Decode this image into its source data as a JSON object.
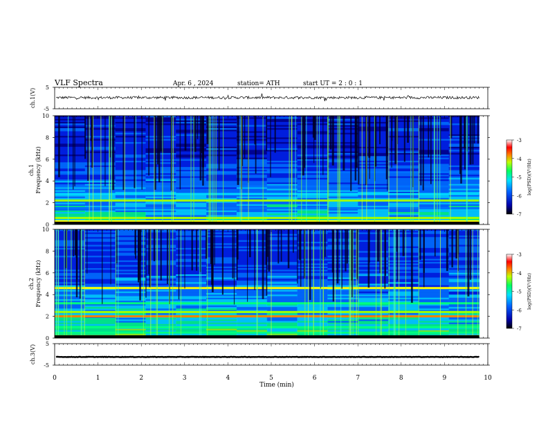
{
  "header": {
    "title": "VLF  Spectra",
    "date": "Apr. 6  , 2024",
    "station": "station= ATH",
    "start_ut": "start  UT  =   2  : 0   : 1"
  },
  "chart_data": [
    {
      "type": "line",
      "panel": "ch1-waveform",
      "ylabel": "ch.1(V)",
      "ylim": [
        -5,
        5
      ],
      "y_ticks": [
        "5",
        "-5"
      ],
      "xlim": [
        0,
        10
      ],
      "series": [
        {
          "values_description_note": "",
          "baseline": 0.2,
          "amplitude": 0.6
        }
      ]
    },
    {
      "type": "heatmap",
      "panel": "ch1-spectrogram",
      "ylabel": "ch.1\nFrequency (kHz)",
      "ylabel_lines": [
        "ch.1",
        "Frequency  (kHz)"
      ],
      "ylim": [
        0,
        10
      ],
      "y_ticks": [
        "0",
        "2",
        "4",
        "6",
        "8",
        "10"
      ],
      "xlim": [
        0,
        10
      ],
      "data_end_min": 9.8,
      "colorbar": {
        "label": "log(PSD)(V²/Hz)",
        "ticks": [
          "-3",
          "-4",
          "-5",
          "-6",
          "-7"
        ],
        "range": [
          -7,
          -3
        ]
      },
      "bands_khz": [
        {
          "f": 1.5,
          "level": -5.6
        },
        {
          "f": 2.2,
          "level": -4.4
        },
        {
          "f": 2.8,
          "level": -5.2
        },
        {
          "f": 3.5,
          "level": -5.5
        },
        {
          "f": 4.8,
          "level": -5.6
        },
        {
          "f": 0.6,
          "level": -4.6
        },
        {
          "f": 0.3,
          "level": -4.0
        }
      ]
    },
    {
      "type": "heatmap",
      "panel": "ch2-spectrogram",
      "ylabel_lines": [
        "ch.2",
        "Frequency  (kHz)"
      ],
      "ylim": [
        0,
        10
      ],
      "y_ticks": [
        "0",
        "2",
        "4",
        "6",
        "8",
        "10"
      ],
      "xlim": [
        0,
        10
      ],
      "data_end_min": 9.8,
      "colorbar": {
        "label": "log(PSD)(V²/Hz)",
        "ticks": [
          "-3",
          "-4",
          "-5",
          "-6",
          "-7"
        ],
        "range": [
          -7,
          -3
        ]
      },
      "bands_khz": [
        {
          "f": 2.0,
          "level": -3.9
        },
        {
          "f": 2.4,
          "level": -4.3
        },
        {
          "f": 3.2,
          "level": -4.9
        },
        {
          "f": 4.6,
          "level": -4.1
        },
        {
          "f": 1.0,
          "level": -5.0
        },
        {
          "f": 0.5,
          "level": -4.8
        }
      ]
    },
    {
      "type": "line",
      "panel": "ch3-waveform",
      "ylabel": "ch.3(V)",
      "ylim": [
        -5,
        5
      ],
      "y_ticks": [
        "5",
        "-5"
      ],
      "xlim": [
        0,
        10
      ],
      "series": [
        {
          "baseline": -1.2,
          "amplitude": 0.1
        }
      ]
    }
  ],
  "x_axis": {
    "label": "Time  (min)",
    "ticks": [
      "0",
      "1",
      "2",
      "3",
      "4",
      "5",
      "6",
      "7",
      "8",
      "9",
      "10"
    ]
  },
  "colors": {
    "colormap": [
      "#000055",
      "#0000ff",
      "#0080ff",
      "#00ffff",
      "#00ff80",
      "#80ff00",
      "#ffff00",
      "#ff8000",
      "#ff0000",
      "#ffffff"
    ]
  }
}
